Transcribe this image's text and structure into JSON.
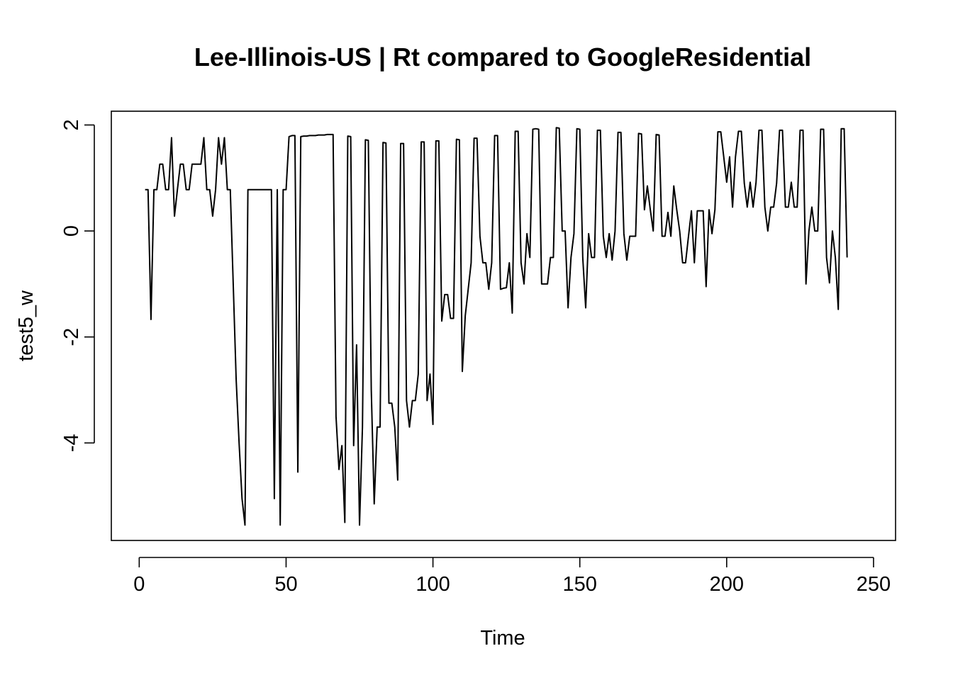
{
  "chart_data": {
    "type": "line",
    "title": "Lee-Illinois-US | Rt compared to GoogleResidential",
    "xlabel": "Time",
    "ylabel": "test5_w",
    "xlim": [
      -9.5,
      257.5
    ],
    "ylim": [
      -5.84,
      2.26
    ],
    "x_ticks": [
      0,
      50,
      100,
      150,
      200,
      250
    ],
    "y_ticks": [
      -4,
      -2,
      0,
      2
    ],
    "x_tick_labels": [
      "0",
      "50",
      "100",
      "150",
      "200",
      "250"
    ],
    "y_tick_labels": [
      "-4",
      "-2",
      "0",
      "2"
    ],
    "grid": false,
    "legend": "none",
    "line_color": "#000000",
    "series": [
      {
        "x_start": 2,
        "values": [
          0.78,
          0.78,
          -1.67,
          0.78,
          0.78,
          1.26,
          1.26,
          0.78,
          0.78,
          1.76,
          0.28,
          0.78,
          1.26,
          1.26,
          0.78,
          0.78,
          1.26,
          1.26,
          1.26,
          1.26,
          1.76,
          0.78,
          0.78,
          0.28,
          0.78,
          1.76,
          1.26,
          1.76,
          0.78,
          0.78,
          -1.0,
          -2.8,
          -4.0,
          -5.05,
          -5.55,
          0.78,
          0.78,
          0.78,
          0.78,
          0.78,
          0.78,
          0.78,
          0.78,
          0.78,
          -5.05,
          0.78,
          -5.55,
          0.78,
          0.78,
          1.78,
          1.8,
          1.8,
          -4.55,
          1.78,
          1.79,
          1.79,
          1.8,
          1.8,
          1.8,
          1.81,
          1.81,
          1.81,
          1.82,
          1.82,
          1.82,
          -3.5,
          -4.5,
          -4.05,
          -5.5,
          1.79,
          1.78,
          -4.05,
          -2.15,
          -5.55,
          -3.7,
          1.72,
          1.71,
          -3.0,
          -5.15,
          -3.7,
          -3.7,
          1.67,
          1.66,
          -3.25,
          -3.25,
          -3.7,
          -4.7,
          1.65,
          1.65,
          -3.2,
          -3.7,
          -3.2,
          -3.2,
          -2.7,
          1.68,
          1.68,
          -3.2,
          -2.7,
          -3.65,
          1.7,
          1.7,
          -1.7,
          -1.2,
          -1.2,
          -1.65,
          -1.65,
          1.73,
          1.72,
          -2.65,
          -1.6,
          -1.1,
          -0.6,
          1.75,
          1.75,
          -0.1,
          -0.6,
          -0.6,
          -1.1,
          -0.6,
          1.8,
          1.8,
          -1.1,
          -1.08,
          -1.07,
          -0.6,
          -1.55,
          1.88,
          1.88,
          -0.6,
          -1.0,
          -0.05,
          -0.5,
          1.92,
          1.93,
          1.92,
          -1.0,
          -1.0,
          -1.0,
          -0.5,
          -0.5,
          1.95,
          1.94,
          0.0,
          0.0,
          -1.45,
          -0.5,
          -0.05,
          1.93,
          1.92,
          -0.5,
          -1.45,
          -0.05,
          -0.5,
          -0.5,
          1.9,
          1.9,
          -0.1,
          -0.5,
          -0.05,
          -0.55,
          0.0,
          1.86,
          1.86,
          -0.05,
          -0.55,
          -0.1,
          -0.1,
          -0.1,
          1.84,
          1.83,
          0.4,
          0.85,
          0.4,
          0.0,
          1.82,
          1.81,
          -0.1,
          -0.1,
          0.35,
          -0.1,
          0.85,
          0.4,
          0.0,
          -0.6,
          -0.6,
          -0.1,
          0.38,
          -0.6,
          0.38,
          0.38,
          0.38,
          -1.05,
          0.4,
          -0.05,
          0.4,
          1.87,
          1.87,
          1.4,
          0.92,
          1.4,
          0.45,
          1.4,
          1.88,
          1.88,
          0.9,
          0.45,
          0.92,
          0.45,
          0.92,
          1.9,
          1.9,
          0.45,
          0.0,
          0.45,
          0.45,
          0.9,
          1.9,
          1.9,
          0.45,
          0.45,
          0.92,
          0.45,
          0.45,
          1.9,
          1.9,
          -1.0,
          0.0,
          0.45,
          0.0,
          0.0,
          1.92,
          1.92,
          -0.5,
          -0.98,
          0.0,
          -0.5,
          -1.48,
          1.93,
          1.93,
          -0.5
        ]
      }
    ]
  }
}
